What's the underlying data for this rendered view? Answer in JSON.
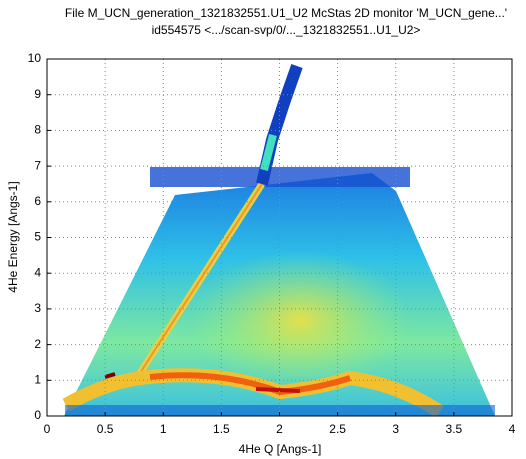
{
  "chart_data": {
    "type": "heatmap",
    "title": "File M_UCN_generation_1321832551.U1_U2 McStas 2D monitor 'M_UCN_gene...'",
    "subtitle": "id554575 <.../scan-svp/0/..._1321832551..U1_U2>",
    "x_label": "4He Q [Angs-1]",
    "y_label": "4He Energy [Angs-1]",
    "xlim": [
      0,
      4
    ],
    "xticks": [
      0,
      0.5,
      1,
      1.5,
      2,
      2.5,
      3,
      3.5,
      4
    ],
    "ylim": [
      0,
      10
    ],
    "yticks": [
      0,
      1,
      2,
      3,
      4,
      5,
      6,
      7,
      8,
      9,
      10
    ],
    "grid": true
  }
}
